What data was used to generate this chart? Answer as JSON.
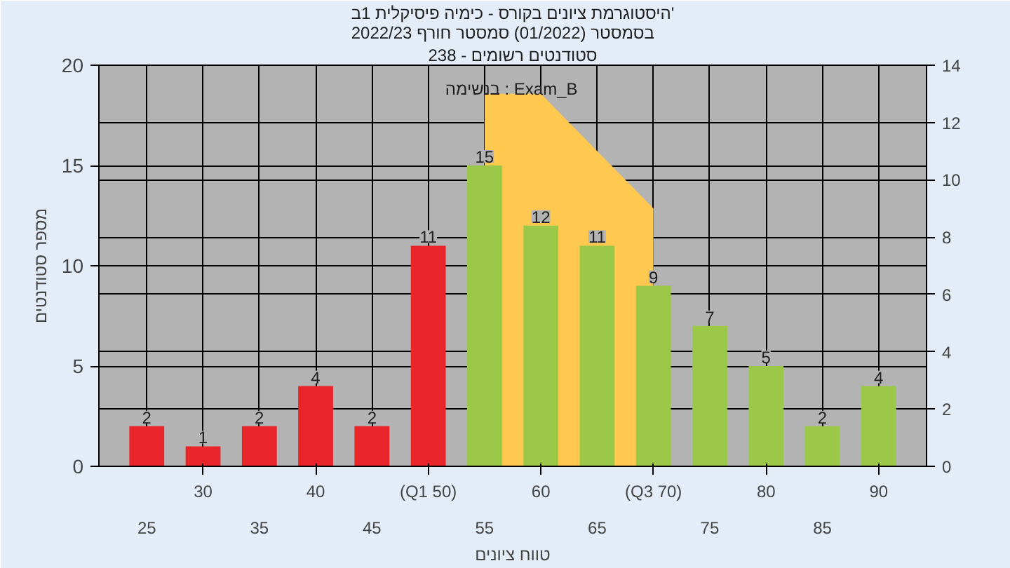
{
  "chart_data": {
    "type": "bar",
    "title": "היסטוגרמת ציונים בקורס - כימיה פיסיקלית 1ב'\nבסמסטר  (01/2022)  סמסטר חורף 2022/23",
    "subtitle": "סטודנטים רשומים - 238",
    "xlabel": "טווח ציונים",
    "ylabel": "מספר סטודנטים",
    "annotations": [
      "בנשימה : Exam_B"
    ],
    "categories": [
      "25",
      "30",
      "35",
      "40",
      "45",
      "(Q1 50)",
      "55",
      "60",
      "65",
      "(Q3 70)",
      "75",
      "80",
      "85",
      "90"
    ],
    "series": [
      {
        "type": "area",
        "axis": "y2",
        "color": "#ffc94f",
        "values": [
          null,
          null,
          null,
          null,
          null,
          null,
          13,
          13,
          11,
          9,
          null,
          null,
          null,
          null
        ]
      },
      {
        "colors": [
          "#e8252b",
          "#e8252b",
          "#e8252b",
          "#e8252b",
          "#e8252b",
          "#e8252b",
          "#9cc84a",
          "#9cc84a",
          "#9cc84a",
          "#9cc84a",
          "#9cc84a",
          "#9cc84a",
          "#9cc84a",
          "#9cc84a"
        ],
        "values": [
          2,
          1,
          2,
          4,
          2,
          11,
          15,
          12,
          11,
          9,
          7,
          5,
          2,
          4
        ],
        "value_labels": [
          "2",
          "1",
          "2",
          "4",
          "2",
          "11",
          "15",
          "12",
          "11",
          "9",
          "7",
          "5",
          "2",
          "4"
        ]
      }
    ],
    "ylim": [
      0,
      20
    ],
    "yticks": [
      0,
      5,
      10,
      15,
      20
    ],
    "y2lim": [
      0,
      14
    ],
    "y2ticks": [
      0,
      2,
      4,
      6,
      8,
      10,
      12,
      14
    ],
    "grid": true
  }
}
